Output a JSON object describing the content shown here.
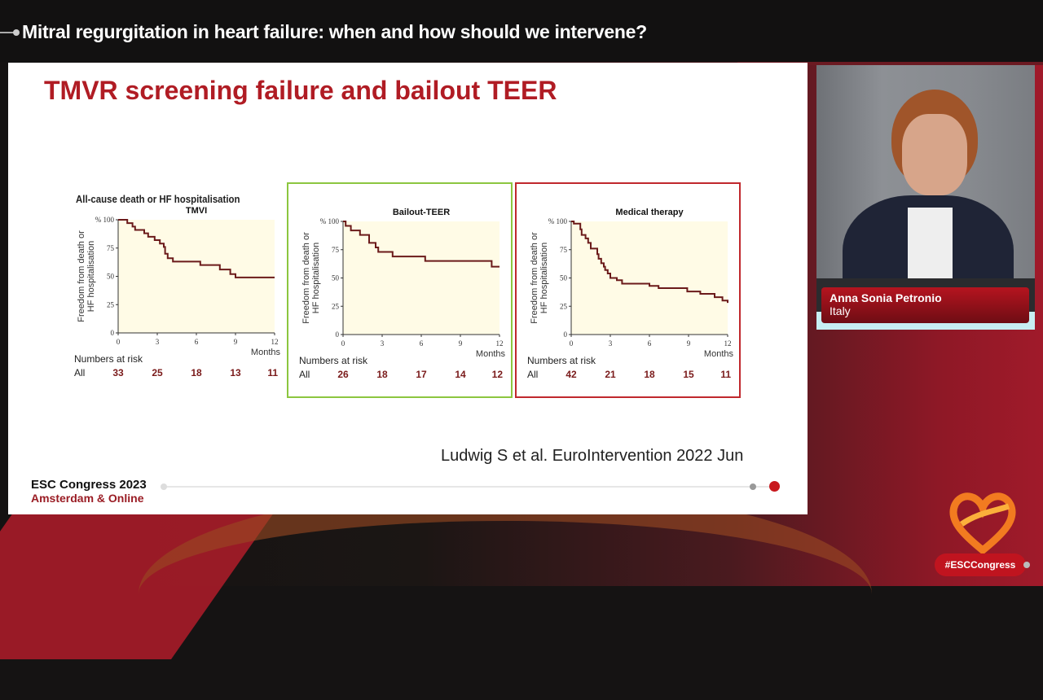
{
  "header": {
    "session_title": "Mitral regurgitation in heart failure: when and how should we intervene?"
  },
  "slide": {
    "title": "TMVR screening failure and bailout TEER",
    "figure_label": "All-cause death or HF hospitalisation",
    "citation": "Ludwig S et al. EuroIntervention 2022 Jun",
    "footer": {
      "line1": "ESC Congress 2023",
      "line2": "Amsterdam & Online"
    }
  },
  "speaker": {
    "name": "Anna Sonia Petronio",
    "country": "Italy"
  },
  "branding": {
    "hashtag": "#ESCCongress"
  },
  "colors": {
    "accent_red": "#b01c24",
    "green_box": "#8cc63f",
    "red_box": "#c0282d",
    "curve": "#6b1a1a",
    "plot_bg": "#fffbe6"
  },
  "chart_data": [
    {
      "type": "line",
      "title": "TMVI",
      "xlabel": "Months",
      "ylabel": "Freedom from death or HF hospitalisation",
      "y_unit_label": "% 100",
      "x_ticks": [
        0,
        3,
        6,
        9,
        12
      ],
      "y_ticks": [
        0,
        25,
        50,
        75,
        100
      ],
      "xlim": [
        0,
        12
      ],
      "ylim": [
        0,
        100
      ],
      "x": [
        0,
        0.7,
        1.1,
        1.3,
        2.0,
        2.3,
        2.8,
        3.2,
        3.5,
        3.6,
        3.8,
        4.2,
        6.3,
        7.8,
        8.6,
        9.0,
        12
      ],
      "values": [
        100,
        97,
        94,
        91,
        88,
        85,
        82,
        79,
        76,
        70,
        66,
        63,
        60,
        56,
        52,
        49,
        49
      ],
      "numbers_at_risk": {
        "label": "Numbers at risk",
        "row_label": "All",
        "values": [
          33,
          25,
          18,
          13,
          11
        ]
      },
      "border": "none"
    },
    {
      "type": "line",
      "title": "Bailout-TEER",
      "xlabel": "Months",
      "ylabel": "Freedom from death or HF hospitalisation",
      "y_unit_label": "% 100",
      "x_ticks": [
        0,
        3,
        6,
        9,
        12
      ],
      "y_ticks": [
        0,
        25,
        50,
        75,
        100
      ],
      "xlim": [
        0,
        12
      ],
      "ylim": [
        0,
        100
      ],
      "x": [
        0,
        0.2,
        0.6,
        1.3,
        2.0,
        2.5,
        2.7,
        3.8,
        6.3,
        11.4,
        12
      ],
      "values": [
        100,
        96,
        92,
        88,
        81,
        77,
        73,
        69,
        65,
        60,
        60
      ],
      "numbers_at_risk": {
        "label": "Numbers at risk",
        "row_label": "All",
        "values": [
          26,
          18,
          17,
          14,
          12
        ]
      },
      "border": "green"
    },
    {
      "type": "line",
      "title": "Medical therapy",
      "xlabel": "Months",
      "ylabel": "Freedom from death or HF hospitalisation",
      "y_unit_label": "% 100",
      "x_ticks": [
        0,
        3,
        6,
        9,
        12
      ],
      "y_ticks": [
        0,
        25,
        50,
        75,
        100
      ],
      "xlim": [
        0,
        12
      ],
      "ylim": [
        0,
        100
      ],
      "x": [
        0,
        0.2,
        0.7,
        0.8,
        1.1,
        1.3,
        1.5,
        2.0,
        2.1,
        2.3,
        2.5,
        2.6,
        2.8,
        3.0,
        3.5,
        3.9,
        6.0,
        6.7,
        8.9,
        9.9,
        11.0,
        11.6,
        12
      ],
      "values": [
        100,
        98,
        93,
        88,
        85,
        81,
        76,
        71,
        67,
        63,
        60,
        57,
        54,
        50,
        48,
        45,
        43,
        41,
        38,
        36,
        33,
        30,
        28
      ],
      "numbers_at_risk": {
        "label": "Numbers at risk",
        "row_label": "All",
        "values": [
          42,
          21,
          18,
          15,
          11
        ]
      },
      "border": "red"
    }
  ]
}
